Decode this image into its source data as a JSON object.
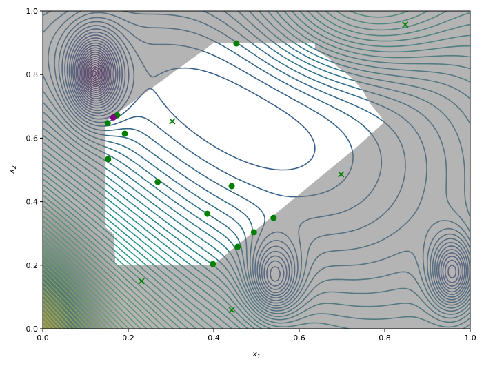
{
  "chart_data": {
    "type": "contour",
    "xlabel": "x",
    "xlabel_sub": "1",
    "ylabel": "x",
    "ylabel_sub": "2",
    "xlim": [
      0,
      1
    ],
    "ylim": [
      0,
      1
    ],
    "xticks": [
      "0.0",
      "0.2",
      "0.4",
      "0.6",
      "0.8",
      "1.0"
    ],
    "yticks": [
      "0.0",
      "0.2",
      "0.4",
      "0.6",
      "0.8",
      "1.0"
    ],
    "colormap": "viridis",
    "infeasible_shade": "#777777",
    "feasible_region": [
      [
        0.16,
        0.2
      ],
      [
        0.398,
        0.2
      ],
      [
        0.731,
        0.568
      ],
      [
        0.798,
        0.649
      ],
      [
        0.792,
        0.666
      ],
      [
        0.766,
        0.709
      ],
      [
        0.747,
        0.753
      ],
      [
        0.723,
        0.789
      ],
      [
        0.69,
        0.824
      ],
      [
        0.669,
        0.852
      ],
      [
        0.64,
        0.876
      ],
      [
        0.637,
        0.883
      ],
      [
        0.637,
        0.9
      ],
      [
        0.4,
        0.9
      ],
      [
        0.147,
        0.651
      ],
      [
        0.147,
        0.319
      ],
      [
        0.166,
        0.297
      ],
      [
        0.17,
        0.2
      ]
    ],
    "circle_points": {
      "color": "#008000",
      "points": [
        [
          0.453,
          0.898
        ],
        [
          0.174,
          0.672
        ],
        [
          0.152,
          0.647
        ],
        [
          0.192,
          0.614
        ],
        [
          0.153,
          0.534
        ],
        [
          0.269,
          0.462
        ],
        [
          0.442,
          0.449
        ],
        [
          0.385,
          0.362
        ],
        [
          0.54,
          0.349
        ],
        [
          0.494,
          0.304
        ],
        [
          0.456,
          0.258
        ],
        [
          0.398,
          0.204
        ]
      ]
    },
    "highlight_point": {
      "color": "#800080",
      "point": [
        0.165,
        0.665
      ]
    },
    "cross_points": {
      "color": "#008000",
      "points": [
        [
          0.303,
          0.653
        ],
        [
          0.848,
          0.957
        ],
        [
          0.698,
          0.486
        ],
        [
          0.231,
          0.15
        ],
        [
          0.442,
          0.059
        ]
      ]
    }
  }
}
